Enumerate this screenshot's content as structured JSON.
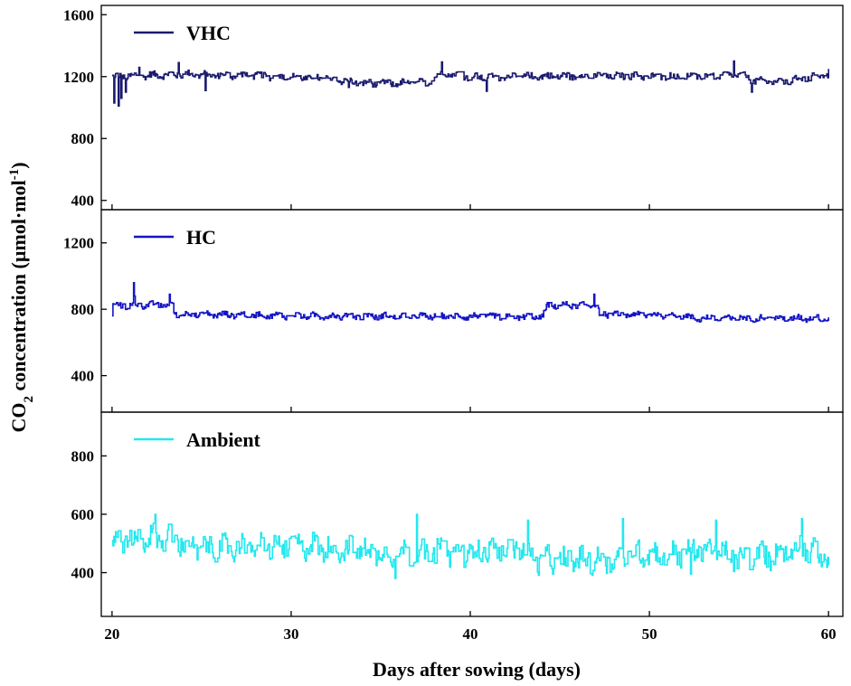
{
  "chart_data": {
    "type": "line",
    "xlabel": "Days after sowing (days)",
    "ylabel_parts": [
      "CO",
      "2",
      " concentration (µmol·mol",
      "-1",
      ")"
    ],
    "xlim": [
      19.4,
      60.8
    ],
    "xticks": [
      20,
      30,
      40,
      50,
      60
    ],
    "panels": [
      {
        "name": "VHC",
        "color": "#1a1a6e",
        "ylim": [
          340,
          1660
        ],
        "yticks": [
          400,
          800,
          1200,
          1600
        ],
        "base_segments": [
          [
            20,
            1200
          ],
          [
            24,
            1215
          ],
          [
            28,
            1205
          ],
          [
            32,
            1190
          ],
          [
            34,
            1155
          ],
          [
            37.5,
            1160
          ],
          [
            38.5,
            1230
          ],
          [
            40,
            1195
          ],
          [
            43,
            1200
          ],
          [
            47,
            1205
          ],
          [
            52,
            1200
          ],
          [
            55,
            1210
          ],
          [
            56,
            1170
          ],
          [
            57.5,
            1165
          ],
          [
            59,
            1200
          ],
          [
            60,
            1210
          ]
        ],
        "noise_amp": 30,
        "spikes": [
          [
            20.1,
            1030
          ],
          [
            20.35,
            1010
          ],
          [
            20.5,
            1060
          ],
          [
            20.75,
            1100
          ],
          [
            21.5,
            1260
          ],
          [
            23.7,
            1290
          ],
          [
            25.2,
            1110
          ],
          [
            33.2,
            1130
          ],
          [
            38.4,
            1295
          ],
          [
            40.9,
            1105
          ],
          [
            54.7,
            1300
          ],
          [
            55.7,
            1100
          ],
          [
            60,
            1250
          ]
        ]
      },
      {
        "name": "HC",
        "color": "#1414c4",
        "ylim": [
          180,
          1400
        ],
        "yticks": [
          400,
          800,
          1200
        ],
        "base_segments": [
          [
            20,
            820
          ],
          [
            23.3,
            830
          ],
          [
            23.5,
            770
          ],
          [
            28,
            765
          ],
          [
            30,
            760
          ],
          [
            44,
            755
          ],
          [
            44.3,
            820
          ],
          [
            47,
            830
          ],
          [
            47.2,
            770
          ],
          [
            52,
            765
          ],
          [
            52.3,
            745
          ],
          [
            60,
            745
          ]
        ],
        "noise_amp": 25,
        "spikes": [
          [
            20,
            760
          ],
          [
            21.2,
            960
          ],
          [
            21.25,
            880
          ],
          [
            23.2,
            890
          ],
          [
            46.9,
            890
          ],
          [
            59.9,
            730
          ]
        ]
      },
      {
        "name": "Ambient",
        "color": "#22e8ee",
        "ylim": [
          250,
          950
        ],
        "yticks": [
          400,
          600,
          800
        ],
        "base_segments": [
          [
            20,
            510
          ],
          [
            23,
            520
          ],
          [
            25,
            480
          ],
          [
            30,
            495
          ],
          [
            33,
            480
          ],
          [
            36,
            465
          ],
          [
            40,
            470
          ],
          [
            43,
            480
          ],
          [
            43.5,
            440
          ],
          [
            48,
            445
          ],
          [
            49,
            470
          ],
          [
            51,
            455
          ],
          [
            53,
            480
          ],
          [
            55,
            450
          ],
          [
            57,
            460
          ],
          [
            58.5,
            490
          ],
          [
            60,
            440
          ]
        ],
        "noise_amp": 55,
        "spikes": [
          [
            22.4,
            600
          ],
          [
            37,
            600
          ],
          [
            43.2,
            580
          ],
          [
            48.5,
            585
          ],
          [
            53.7,
            580
          ],
          [
            58.5,
            585
          ],
          [
            35.8,
            380
          ],
          [
            52.3,
            395
          ]
        ]
      }
    ]
  }
}
